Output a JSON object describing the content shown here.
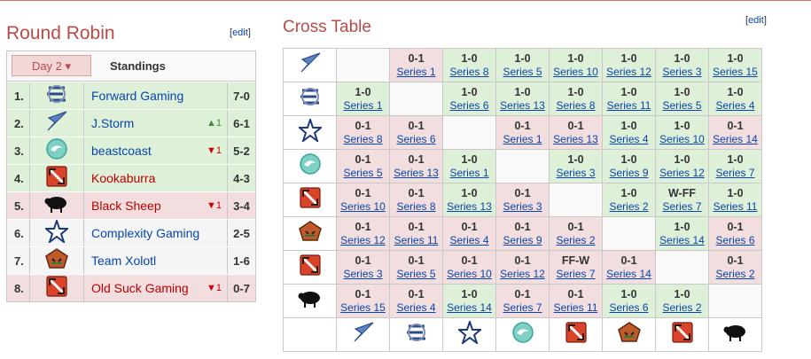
{
  "page": {
    "round_robin_title": "Round Robin",
    "cross_table_title": "Cross Table",
    "edit_open": "[",
    "edit_label": "edit",
    "edit_close": "]"
  },
  "standings": {
    "day_button_label": "Day 2",
    "title": "Standings",
    "rows": [
      {
        "rank": "1.",
        "team": "Forward Gaming",
        "logo": "forward-gaming-logo",
        "change": "",
        "score": "7-0",
        "status": "green"
      },
      {
        "rank": "2.",
        "team": "J.Storm",
        "logo": "jstorm-logo",
        "change": "▲1",
        "change_dir": "up",
        "score": "6-1",
        "status": "green"
      },
      {
        "rank": "3.",
        "team": "beastcoast",
        "logo": "beastcoast-logo",
        "change": "▼1",
        "change_dir": "down",
        "score": "5-2",
        "status": "green"
      },
      {
        "rank": "4.",
        "team": "Kookaburra",
        "logo": "dota-logo",
        "change": "",
        "score": "4-3",
        "status": "green"
      },
      {
        "rank": "5.",
        "team": "Black Sheep",
        "logo": "black-sheep-logo",
        "change": "▼1",
        "change_dir": "down",
        "score": "3-4",
        "status": "red"
      },
      {
        "rank": "6.",
        "team": "Complexity Gaming",
        "logo": "complexity-logo",
        "change": "",
        "score": "2-5",
        "status": "plain"
      },
      {
        "rank": "7.",
        "team": "Team Xolotl",
        "logo": "xolotl-logo",
        "change": "",
        "score": "1-6",
        "status": "plain"
      },
      {
        "rank": "8.",
        "team": "Old Suck Gaming",
        "logo": "dota-logo",
        "change": "▼1",
        "change_dir": "down",
        "score": "0-7",
        "status": "red"
      }
    ]
  },
  "cross_table": {
    "row_logos": [
      "jstorm-logo",
      "forward-gaming-logo",
      "complexity-logo",
      "beastcoast-logo",
      "dota-logo",
      "xolotl-logo",
      "dota-logo",
      "black-sheep-logo"
    ],
    "col_logos": [
      "jstorm-logo",
      "forward-gaming-logo",
      "complexity-logo",
      "beastcoast-logo",
      "dota-logo",
      "xolotl-logo",
      "dota-logo",
      "black-sheep-logo"
    ],
    "rows": [
      [
        null,
        {
          "r": "0-1",
          "s": "Series 1",
          "c": "r"
        },
        {
          "r": "1-0",
          "s": "Series 8",
          "c": "g"
        },
        {
          "r": "1-0",
          "s": "Series 5",
          "c": "g"
        },
        {
          "r": "1-0",
          "s": "Series 10",
          "c": "g"
        },
        {
          "r": "1-0",
          "s": "Series 12",
          "c": "g"
        },
        {
          "r": "1-0",
          "s": "Series 3",
          "c": "g"
        },
        {
          "r": "1-0",
          "s": "Series 15",
          "c": "g"
        }
      ],
      [
        {
          "r": "1-0",
          "s": "Series 1",
          "c": "g"
        },
        null,
        {
          "r": "1-0",
          "s": "Series 6",
          "c": "g"
        },
        {
          "r": "1-0",
          "s": "Series 13",
          "c": "g"
        },
        {
          "r": "1-0",
          "s": "Series 8",
          "c": "g"
        },
        {
          "r": "1-0",
          "s": "Series 11",
          "c": "g"
        },
        {
          "r": "1-0",
          "s": "Series 5",
          "c": "g"
        },
        {
          "r": "1-0",
          "s": "Series 4",
          "c": "g"
        }
      ],
      [
        {
          "r": "0-1",
          "s": "Series 8",
          "c": "r"
        },
        {
          "r": "0-1",
          "s": "Series 6",
          "c": "r"
        },
        null,
        {
          "r": "0-1",
          "s": "Series 1",
          "c": "r"
        },
        {
          "r": "0-1",
          "s": "Series 13",
          "c": "r"
        },
        {
          "r": "1-0",
          "s": "Series 4",
          "c": "g"
        },
        {
          "r": "1-0",
          "s": "Series 10",
          "c": "g"
        },
        {
          "r": "0-1",
          "s": "Series 14",
          "c": "r"
        }
      ],
      [
        {
          "r": "0-1",
          "s": "Series 5",
          "c": "r"
        },
        {
          "r": "0-1",
          "s": "Series 13",
          "c": "r"
        },
        {
          "r": "1-0",
          "s": "Series 1",
          "c": "g"
        },
        null,
        {
          "r": "1-0",
          "s": "Series 3",
          "c": "g"
        },
        {
          "r": "1-0",
          "s": "Series 9",
          "c": "g"
        },
        {
          "r": "1-0",
          "s": "Series 12",
          "c": "g"
        },
        {
          "r": "1-0",
          "s": "Series 7",
          "c": "g"
        }
      ],
      [
        {
          "r": "0-1",
          "s": "Series 10",
          "c": "r"
        },
        {
          "r": "0-1",
          "s": "Series 8",
          "c": "r"
        },
        {
          "r": "1-0",
          "s": "Series 13",
          "c": "g"
        },
        {
          "r": "0-1",
          "s": "Series 3",
          "c": "r"
        },
        null,
        {
          "r": "1-0",
          "s": "Series 2",
          "c": "g"
        },
        {
          "r": "W-FF",
          "s": "Series 7",
          "c": "g"
        },
        {
          "r": "1-0",
          "s": "Series 11",
          "c": "g"
        }
      ],
      [
        {
          "r": "0-1",
          "s": "Series 12",
          "c": "r"
        },
        {
          "r": "0-1",
          "s": "Series 11",
          "c": "r"
        },
        {
          "r": "0-1",
          "s": "Series 4",
          "c": "r"
        },
        {
          "r": "0-1",
          "s": "Series 9",
          "c": "r"
        },
        {
          "r": "0-1",
          "s": "Series 2",
          "c": "r"
        },
        null,
        {
          "r": "1-0",
          "s": "Series 14",
          "c": "g"
        },
        {
          "r": "0-1",
          "s": "Series 6",
          "c": "r"
        }
      ],
      [
        {
          "r": "0-1",
          "s": "Series 3",
          "c": "r"
        },
        {
          "r": "0-1",
          "s": "Series 5",
          "c": "r"
        },
        {
          "r": "0-1",
          "s": "Series 10",
          "c": "r"
        },
        {
          "r": "0-1",
          "s": "Series 12",
          "c": "r"
        },
        {
          "r": "FF-W",
          "s": "Series 7",
          "c": "r"
        },
        {
          "r": "0-1",
          "s": "Series 14",
          "c": "r"
        },
        null,
        {
          "r": "0-1",
          "s": "Series 2",
          "c": "r"
        }
      ],
      [
        {
          "r": "0-1",
          "s": "Series 15",
          "c": "r"
        },
        {
          "r": "0-1",
          "s": "Series 4",
          "c": "r"
        },
        {
          "r": "1-0",
          "s": "Series 14",
          "c": "g"
        },
        {
          "r": "0-1",
          "s": "Series 7",
          "c": "r"
        },
        {
          "r": "0-1",
          "s": "Series 11",
          "c": "r"
        },
        {
          "r": "1-0",
          "s": "Series 6",
          "c": "g"
        },
        {
          "r": "1-0",
          "s": "Series 2",
          "c": "g"
        },
        null
      ]
    ]
  }
}
